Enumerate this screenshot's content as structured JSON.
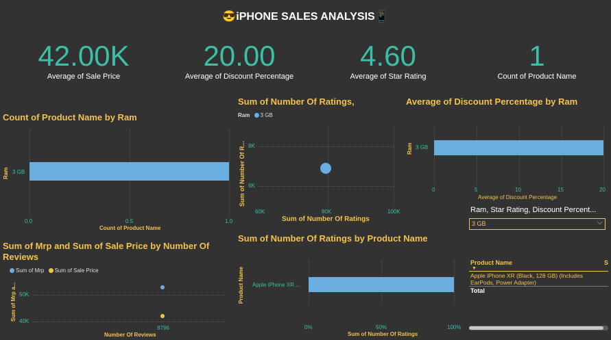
{
  "report": {
    "title": "iPHONE SALES ANALYSIS",
    "title_emoji_left": "😎",
    "title_emoji_right": "📱"
  },
  "kpis": [
    {
      "value": "42.00K",
      "label": "Average of Sale Price"
    },
    {
      "value": "20.00",
      "label": "Average of Discount Percentage"
    },
    {
      "value": "4.60",
      "label": "Average of Star Rating"
    },
    {
      "value": "1",
      "label": "Count of Product Name"
    }
  ],
  "colors": {
    "accent": "#3bbfa6",
    "title": "#f2c14e",
    "bar": "#6aaee0",
    "mrp": "#6aaee0",
    "sale": "#f2c14e"
  },
  "chart_data": [
    {
      "type": "bar",
      "title": "Count of Product Name by Ram",
      "categories": [
        "3 GB"
      ],
      "values": [
        1
      ],
      "xlabel": "Count of Product Name",
      "ylabel": "Ram",
      "xticks": [
        "0.0",
        "0.5",
        "1.0"
      ]
    },
    {
      "type": "scatter",
      "title": "Sum of Number Of Ratings,",
      "legend_title": "Ram",
      "legend": [
        "3 GB"
      ],
      "xlabel": "Sum of Number Of Ratings",
      "ylabel": "Sum of Number Of R...",
      "xticks": [
        "60K",
        "80K",
        "100K"
      ],
      "yticks": [
        "8K",
        "6K"
      ],
      "points": [
        {
          "x": 79800,
          "y": 6900
        }
      ]
    },
    {
      "type": "bar",
      "title": "Average of Discount Percentage by Ram",
      "categories": [
        "3 GB"
      ],
      "values": [
        20
      ],
      "xlabel": "Average of Discount Percentage",
      "ylabel": "Ram",
      "xticks": [
        "0",
        "5",
        "10",
        "15",
        "20"
      ]
    },
    {
      "type": "scatter",
      "title": "Sum of Mrp and Sum of Sale Price by Number Of Reviews",
      "series": [
        {
          "name": "Sum of Mrp",
          "x": [
            8796
          ],
          "y": [
            52900
          ]
        },
        {
          "name": "Sum of Sale Price",
          "x": [
            8796
          ],
          "y": [
            42000
          ]
        }
      ],
      "xlabel": "Number Of Reviews",
      "ylabel": "Sum of Mrp a...",
      "xticks": [
        "8796"
      ],
      "yticks": [
        "50K",
        "40K"
      ]
    },
    {
      "type": "bar",
      "title": "Sum of Number Of Ratings by Product Name",
      "categories": [
        "Apple iPhone XR ..."
      ],
      "values": [
        100
      ],
      "xlabel": "Sum of Number Of Ratings",
      "ylabel": "Product Name",
      "xticks": [
        "0%",
        "50%",
        "100%"
      ]
    }
  ],
  "slicer": {
    "title": "Ram, Star Rating, Discount Percent...",
    "selected": "3 GB"
  },
  "table": {
    "header": "Product Name",
    "header_cut": "S",
    "rows": [
      "Apple iPhone XR (Black, 128 GB) (Includes EarPods, Power Adapter)"
    ],
    "total": "Total"
  }
}
